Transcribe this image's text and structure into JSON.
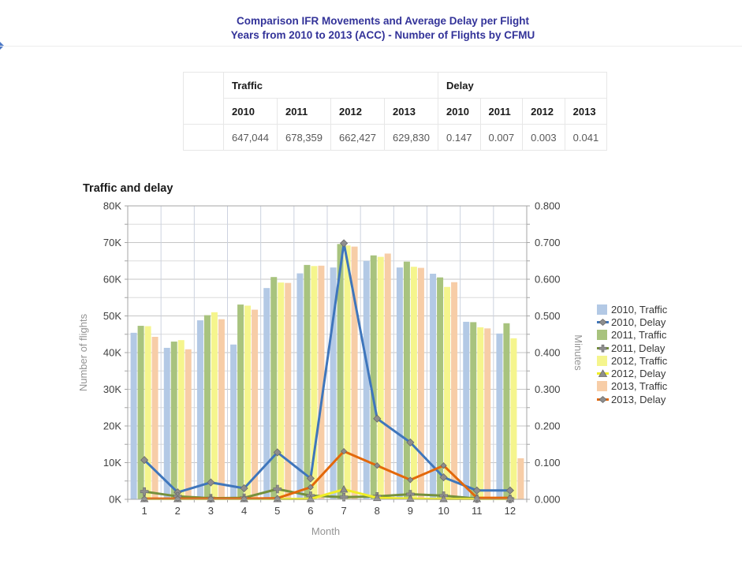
{
  "page": {
    "title_line1": "Comparison IFR Movements and Average Delay per Flight",
    "title_line2": "Years from 2010 to 2013 (ACC) - Number of Flights by CFMU",
    "title_color": "#333399"
  },
  "summary_table": {
    "groups": [
      {
        "label": "Traffic",
        "columns": [
          "2010",
          "2011",
          "2012",
          "2013"
        ],
        "values": [
          "647,044",
          "678,359",
          "662,427",
          "629,830"
        ]
      },
      {
        "label": "Delay",
        "columns": [
          "2010",
          "2011",
          "2012",
          "2013"
        ],
        "values": [
          "0.147",
          "0.007",
          "0.003",
          "0.041"
        ]
      }
    ]
  },
  "chart_data": {
    "type": "bar",
    "title": "Traffic and delay",
    "xlabel": "Month",
    "x": [
      "1",
      "2",
      "3",
      "4",
      "5",
      "6",
      "7",
      "8",
      "9",
      "10",
      "11",
      "12"
    ],
    "left_axis": {
      "label": "Number of flights",
      "min": 0,
      "max": 80000,
      "ticks": [
        "0K",
        "10K",
        "20K",
        "30K",
        "40K",
        "50K",
        "60K",
        "70K",
        "80K"
      ]
    },
    "right_axis": {
      "label": "Minutes",
      "min": 0,
      "max": 0.8,
      "ticks": [
        "0.000",
        "0.100",
        "0.200",
        "0.300",
        "0.400",
        "0.500",
        "0.600",
        "0.700",
        "0.800"
      ]
    },
    "grid": true,
    "legend_position": "right",
    "marker_color": "#8e8e8e",
    "marker_edge": "#6b6b6b",
    "bar_series": [
      {
        "name": "2010, Traffic",
        "color": "#b3c9e5",
        "values": [
          45400,
          41300,
          48800,
          42200,
          57600,
          61600,
          63200,
          65000,
          63200,
          61500,
          48400,
          45200
        ]
      },
      {
        "name": "2011, Traffic",
        "color": "#a8c37e",
        "values": [
          47300,
          43000,
          50200,
          53100,
          60600,
          63900,
          69600,
          66500,
          64800,
          60500,
          48300,
          48000
        ]
      },
      {
        "name": "2012, Traffic",
        "color": "#f5f58d",
        "values": [
          47200,
          43400,
          51000,
          52800,
          59100,
          63600,
          69200,
          66100,
          63400,
          57900,
          46900,
          43900
        ]
      },
      {
        "name": "2013, Traffic",
        "color": "#f7cda7",
        "values": [
          44300,
          40900,
          49100,
          51700,
          59000,
          63700,
          68900,
          67000,
          63100,
          59200,
          46600,
          11200
        ]
      }
    ],
    "line_series": [
      {
        "name": "2010, Delay",
        "color": "#3f76bc",
        "marker": "diamond",
        "values": [
          0.107,
          0.019,
          0.046,
          0.03,
          0.128,
          0.057,
          0.698,
          0.22,
          0.155,
          0.06,
          0.024,
          0.024
        ]
      },
      {
        "name": "2011, Delay",
        "color": "#75903c",
        "marker": "plus",
        "values": [
          0.021,
          0.008,
          0.003,
          0.004,
          0.028,
          0.01,
          0.006,
          0.008,
          0.014,
          0.01,
          0.002,
          0.001
        ]
      },
      {
        "name": "2012, Delay",
        "color": "#f0ee27",
        "marker": "triangle",
        "values": [
          0.001,
          0.001,
          0.001,
          0.001,
          0.001,
          0.001,
          0.027,
          0.004,
          0.002,
          0.001,
          0.001,
          0.001
        ]
      },
      {
        "name": "2013, Delay",
        "color": "#e3680b",
        "marker": "diamond-small",
        "values": [
          0.002,
          0.002,
          0.002,
          0.002,
          0.003,
          0.033,
          0.131,
          0.092,
          0.053,
          0.092,
          0.004,
          0.004
        ]
      }
    ]
  }
}
